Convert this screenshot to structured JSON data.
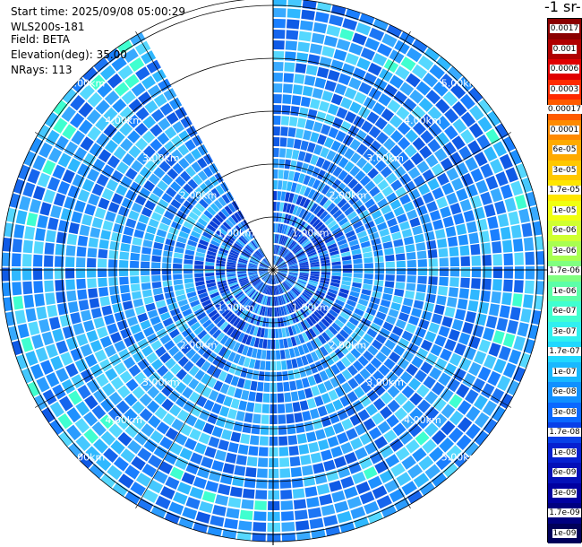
{
  "info": {
    "start_time": "Start time: 2025/09/08 05:00:29",
    "instrument": "WLS200s-181",
    "field": "Field: BETA",
    "elevation": "Elevation(deg): 35.00",
    "nrays": "NRays: 113"
  },
  "colorbar": {
    "title": "-1 sr-",
    "labels": [
      "0.0017",
      "0.001",
      "0.0006",
      "0.0003",
      "0.00017",
      "0.0001",
      "6e-05",
      "3e-05",
      "1.7e-05",
      "1e-05",
      "6e-06",
      "3e-06",
      "1.7e-06",
      "1e-06",
      "6e-07",
      "3e-07",
      "1.7e-07",
      "1e-07",
      "6e-08",
      "3e-08",
      "1.7e-08",
      "1e-08",
      "6e-09",
      "3e-09",
      "1.7e-09",
      "1e-09"
    ],
    "colors": [
      "#8b0000",
      "#b00000",
      "#e00000",
      "#ff2a00",
      "#ff5a00",
      "#ff8a00",
      "#ffaa00",
      "#ffc800",
      "#ffe600",
      "#f0ff10",
      "#d0ff30",
      "#a8ff50",
      "#80ff80",
      "#5cffa8",
      "#40ffd0",
      "#30f0f0",
      "#20d8ff",
      "#18b8ff",
      "#1090ff",
      "#0a68ff",
      "#0840e8",
      "#0620d0",
      "#0410b8",
      "#0000a0",
      "#000080",
      "#00005a"
    ]
  },
  "chart_data": {
    "type": "polar",
    "field": "BETA",
    "elevation_deg": 35.0,
    "nrays": 113,
    "range_rings_km": [
      1.0,
      2.0,
      3.0,
      4.0,
      5.0
    ],
    "ring_labels": [
      "1.00km",
      "2.00km",
      "3.00km",
      "4.00km",
      "5.00km"
    ],
    "spoke_angles_deg": [
      0,
      30,
      60,
      90,
      120,
      150,
      180,
      210,
      240,
      270,
      300,
      330
    ],
    "missing_sector_deg": [
      330,
      360
    ],
    "scale": "log",
    "value_range": [
      "1e-09",
      "0.0017"
    ]
  }
}
